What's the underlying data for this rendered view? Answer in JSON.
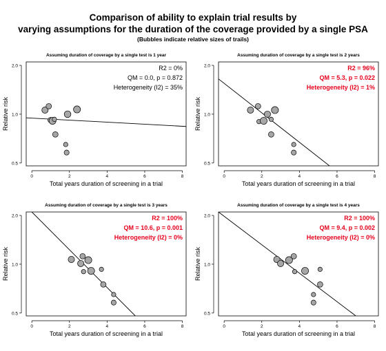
{
  "figure": {
    "title_line1": "Comparison of ability to explain trial results by",
    "title_line2": "varying assumptions for the duration of the coverage provided by a single PSA",
    "subtitle": "(Bubbles indicate relative sizes of trails)"
  },
  "colors": {
    "bubble_fill": "#a6a6a6",
    "bubble_stroke": "#000000",
    "significant_text": "#e8001c",
    "normal_text": "#000000",
    "line": "#000000"
  },
  "chart_data": [
    {
      "type": "scatter",
      "title": "Assuming duration of coverage by a single test is 1 year",
      "xlabel": "Total years duration of screening in a trial",
      "ylabel": "Relative risk",
      "xlim": [
        -0.3,
        8.2
      ],
      "ylim": [
        0.48,
        2.1
      ],
      "y_scale": "log",
      "xticks": [
        "0",
        "2",
        "4",
        "6",
        "8"
      ],
      "yticks": [
        "0.5",
        "1.0",
        "2.0"
      ],
      "grid": false,
      "stats": [
        "R2 = 0%",
        "QM = 0.0, p = 0.872",
        "Heterogeneity (I2) = 35%"
      ],
      "stats_highlight": false,
      "regression_line": {
        "x": [
          -0.3,
          8.2
        ],
        "y": [
          0.95,
          0.84
        ]
      },
      "points": [
        {
          "x": 0.7,
          "y": 1.06,
          "size": 3
        },
        {
          "x": 0.9,
          "y": 1.12,
          "size": 2
        },
        {
          "x": 1.0,
          "y": 0.92,
          "size": 2
        },
        {
          "x": 1.1,
          "y": 0.91,
          "size": 4
        },
        {
          "x": 1.2,
          "y": 0.93,
          "size": 1
        },
        {
          "x": 1.25,
          "y": 0.75,
          "size": 2
        },
        {
          "x": 1.8,
          "y": 0.65,
          "size": 1
        },
        {
          "x": 1.85,
          "y": 0.58,
          "size": 1.5
        },
        {
          "x": 1.9,
          "y": 1.0,
          "size": 3.5
        },
        {
          "x": 2.4,
          "y": 1.07,
          "size": 4
        }
      ]
    },
    {
      "type": "scatter",
      "title": "Assuming duration of coverage by a single test is 2 years",
      "xlabel": "Total years duration of screening in a trial",
      "ylabel": "Relative risk",
      "xlim": [
        -0.3,
        8.2
      ],
      "ylim": [
        0.48,
        2.1
      ],
      "y_scale": "log",
      "xticks": [
        "0",
        "2",
        "4",
        "6",
        "8"
      ],
      "yticks": [
        "0.5",
        "1.0",
        "2.0"
      ],
      "grid": false,
      "stats": [
        "R2 = 96%",
        "QM = 5.3, p = 0.022",
        "Heterogeneity (I2) = 1%"
      ],
      "stats_highlight": true,
      "regression_line": {
        "x": [
          -0.3,
          5.6
        ],
        "y": [
          1.65,
          0.48
        ]
      },
      "points": [
        {
          "x": 1.4,
          "y": 1.06,
          "size": 3
        },
        {
          "x": 1.8,
          "y": 1.12,
          "size": 2
        },
        {
          "x": 1.85,
          "y": 0.9,
          "size": 1
        },
        {
          "x": 2.1,
          "y": 0.91,
          "size": 4
        },
        {
          "x": 2.3,
          "y": 1.0,
          "size": 3
        },
        {
          "x": 2.5,
          "y": 0.93,
          "size": 1
        },
        {
          "x": 2.5,
          "y": 0.75,
          "size": 2
        },
        {
          "x": 2.7,
          "y": 1.06,
          "size": 4
        },
        {
          "x": 3.7,
          "y": 0.65,
          "size": 1
        },
        {
          "x": 3.7,
          "y": 0.58,
          "size": 1.5
        }
      ]
    },
    {
      "type": "scatter",
      "title": "Assuming duration of coverage by a single test is 3 years",
      "xlabel": "Total years duration of screening in a trial",
      "ylabel": "Relative risk",
      "xlim": [
        -0.3,
        8.2
      ],
      "ylim": [
        0.48,
        2.1
      ],
      "y_scale": "log",
      "xticks": [
        "0",
        "2",
        "4",
        "6",
        "8"
      ],
      "yticks": [
        "0.5",
        "1.0",
        "2.0"
      ],
      "grid": false,
      "stats": [
        "R2 = 100%",
        "QM = 10.6, p = 0.001",
        "Heterogeneity (I2) = 0%"
      ],
      "stats_highlight": true,
      "regression_line": {
        "x": [
          0.0,
          5.5
        ],
        "y": [
          2.1,
          0.48
        ]
      },
      "points": [
        {
          "x": 2.1,
          "y": 1.07,
          "size": 3
        },
        {
          "x": 2.6,
          "y": 1.01,
          "size": 3
        },
        {
          "x": 2.7,
          "y": 1.12,
          "size": 2
        },
        {
          "x": 2.75,
          "y": 0.9,
          "size": 1
        },
        {
          "x": 3.0,
          "y": 1.06,
          "size": 4
        },
        {
          "x": 3.15,
          "y": 0.91,
          "size": 4
        },
        {
          "x": 3.7,
          "y": 0.93,
          "size": 1
        },
        {
          "x": 3.8,
          "y": 0.75,
          "size": 2
        },
        {
          "x": 4.35,
          "y": 0.65,
          "size": 1
        },
        {
          "x": 4.35,
          "y": 0.58,
          "size": 1.5
        }
      ]
    },
    {
      "type": "scatter",
      "title": "Assuming duration of coverage by a single test is 4 years",
      "xlabel": "Total years duration of screening in a trial",
      "ylabel": "Relative risk",
      "xlim": [
        -0.3,
        8.2
      ],
      "ylim": [
        0.48,
        2.1
      ],
      "y_scale": "log",
      "xticks": [
        "0",
        "2",
        "4",
        "6",
        "8"
      ],
      "yticks": [
        "0.5",
        "1.0",
        "2.0"
      ],
      "grid": false,
      "stats": [
        "R2 = 100%",
        "QM = 9.4, p = 0.002",
        "Heterogeneity (I2) = 0%"
      ],
      "stats_highlight": true,
      "regression_line": {
        "x": [
          -0.3,
          7.0
        ],
        "y": [
          2.1,
          0.48
        ]
      },
      "points": [
        {
          "x": 2.8,
          "y": 1.07,
          "size": 3
        },
        {
          "x": 3.0,
          "y": 1.01,
          "size": 3
        },
        {
          "x": 3.45,
          "y": 1.06,
          "size": 4
        },
        {
          "x": 3.7,
          "y": 1.12,
          "size": 2
        },
        {
          "x": 3.75,
          "y": 0.9,
          "size": 1
        },
        {
          "x": 4.3,
          "y": 0.91,
          "size": 4
        },
        {
          "x": 4.75,
          "y": 0.65,
          "size": 1
        },
        {
          "x": 4.75,
          "y": 0.58,
          "size": 1.5
        },
        {
          "x": 5.1,
          "y": 0.93,
          "size": 1
        },
        {
          "x": 5.1,
          "y": 0.75,
          "size": 2
        }
      ]
    }
  ]
}
